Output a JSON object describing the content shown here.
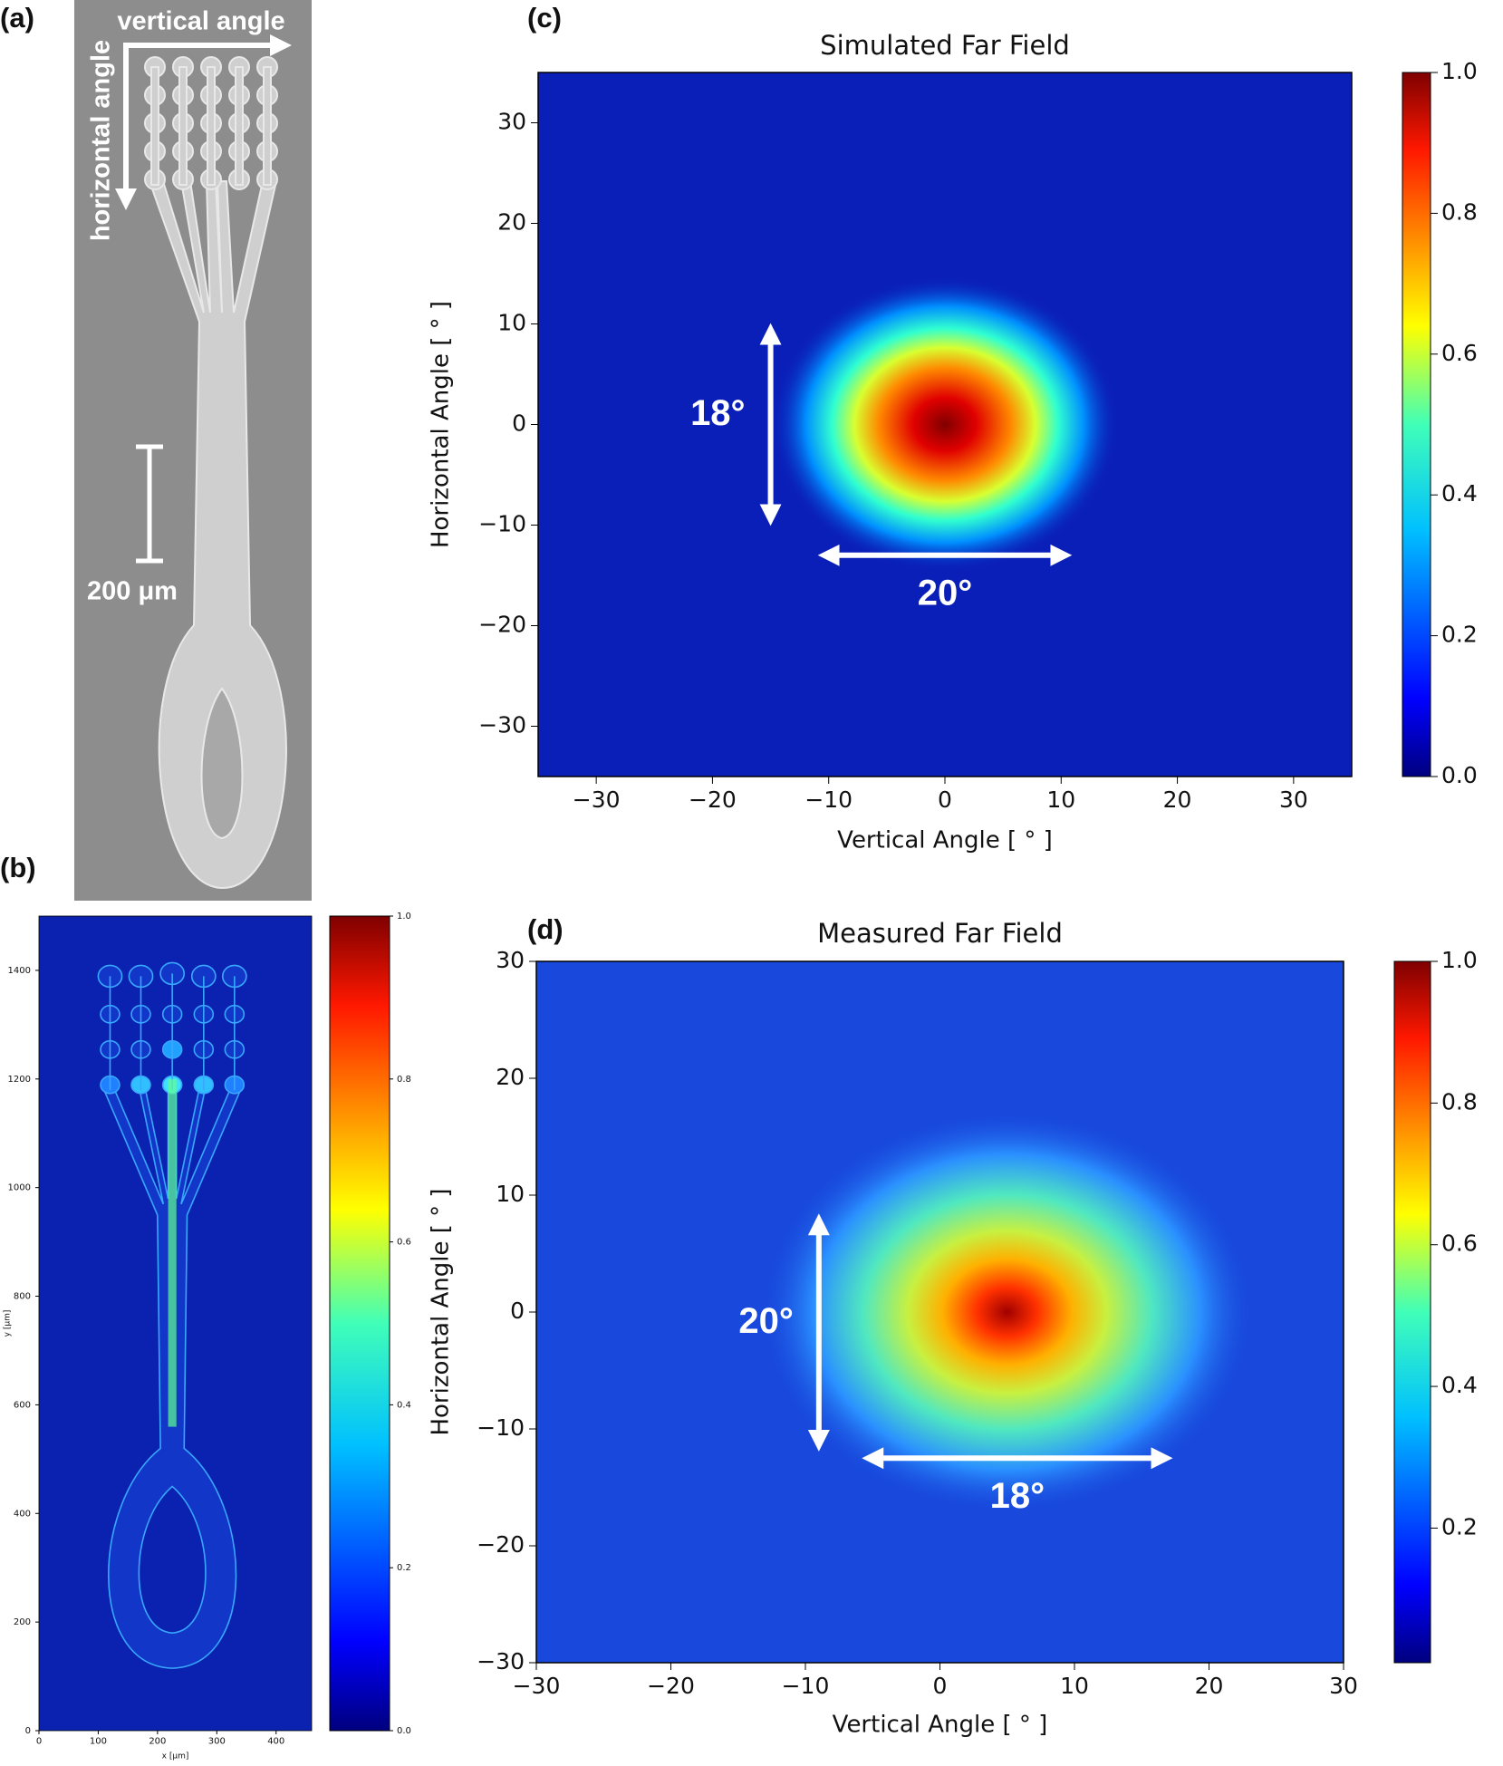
{
  "figure": {
    "panel_labels": [
      "(a)",
      "(b)",
      "(c)",
      "(d)"
    ],
    "sem_image": {
      "labels": [
        "vertical angle",
        "horizontal angle",
        "200 μm"
      ]
    }
  },
  "chart_data": [
    {
      "type": "heatmap",
      "colormap": "jet",
      "background_color": "#0b22b0",
      "xlabel": "x [μm]",
      "ylabel": "y [μm]",
      "xlim": [
        0,
        460
      ],
      "ylim": [
        0,
        1500
      ],
      "xticks": [
        0,
        100,
        200,
        300,
        400
      ],
      "yticks": [
        0,
        200,
        400,
        600,
        800,
        1000,
        1200,
        1400
      ],
      "colorbar": {
        "lim": [
          0,
          1
        ],
        "ticks": [
          {
            "value": 0,
            "label": "0.0"
          },
          0.2,
          0.4,
          0.6,
          0.8,
          {
            "value": 1,
            "label": "1.0"
          }
        ]
      }
    },
    {
      "type": "heatmap",
      "colormap": "jet",
      "background_color": "#0a1fb8",
      "title": "Simulated Far Field",
      "xlabel": "Vertical Angle [ ° ]",
      "ylabel": "Horizontal Angle [ ° ]",
      "xlim": [
        -35,
        35
      ],
      "ylim": [
        -35,
        35
      ],
      "xticks": [
        {
          "value": -30,
          "label": "−30"
        },
        {
          "value": -20,
          "label": "−20"
        },
        {
          "value": -10,
          "label": "−10"
        },
        0,
        10,
        20,
        30
      ],
      "yticks": [
        {
          "value": -30,
          "label": "−30"
        },
        {
          "value": -20,
          "label": "−20"
        },
        {
          "value": -10,
          "label": "−10"
        },
        0,
        10,
        20,
        30
      ],
      "spot": {
        "x": 0,
        "y": 0,
        "value": 1.0
      },
      "annotations": [
        {
          "text": "18°",
          "x": [
            -15,
            -15
          ],
          "y": [
            -9,
            9
          ]
        },
        {
          "text": "20°",
          "x": [
            -10,
            10
          ],
          "y": [
            -13,
            -13
          ]
        }
      ],
      "colorbar": {
        "lim": [
          0,
          1
        ],
        "ticks": [
          {
            "value": 0,
            "label": "0.0"
          },
          0.2,
          0.4,
          0.6,
          0.8,
          {
            "value": 1,
            "label": "1.0"
          }
        ]
      }
    },
    {
      "type": "heatmap",
      "colormap": "jet",
      "background_color": "#1848dc",
      "title": "Measured Far Field",
      "xlabel": "Vertical Angle [ ° ]",
      "ylabel": "Horizontal Angle [ ° ]",
      "xlim": [
        -30,
        30
      ],
      "ylim": [
        -30,
        30
      ],
      "xticks": [
        {
          "value": -30,
          "label": "−30"
        },
        {
          "value": -20,
          "label": "−20"
        },
        {
          "value": -10,
          "label": "−10"
        },
        0,
        10,
        20,
        30
      ],
      "yticks": [
        {
          "value": -30,
          "label": "−30"
        },
        {
          "value": -20,
          "label": "−20"
        },
        {
          "value": -10,
          "label": "−10"
        },
        0,
        10,
        20,
        30
      ],
      "spot": {
        "x": 5,
        "y": 0,
        "value": 1.0
      },
      "annotations": [
        {
          "text": "20°",
          "x": [
            -9,
            -9
          ],
          "y": [
            -11,
            7.5
          ]
        },
        {
          "text": "18°",
          "x": [
            -5,
            16.5
          ],
          "y": [
            -12.5,
            -12.5
          ]
        }
      ],
      "colorbar": {
        "lim": [
          0.01,
          1
        ],
        "ticks": [
          0.2,
          0.4,
          0.6,
          0.8,
          {
            "value": 1,
            "label": "1.0"
          }
        ]
      }
    }
  ]
}
